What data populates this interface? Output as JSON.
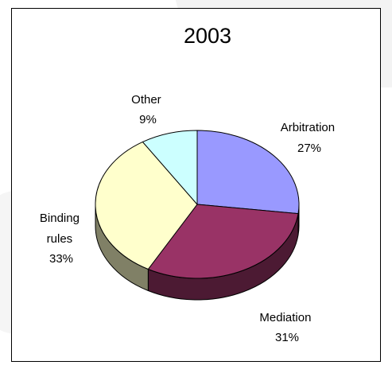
{
  "chart_data": {
    "type": "pie",
    "title": "2003",
    "slices": [
      {
        "label": "Arbitration",
        "percent_label": "27%",
        "value": 27,
        "color": "#9999ff",
        "side_color": "#4c4c80"
      },
      {
        "label": "Mediation",
        "percent_label": "31%",
        "value": 31,
        "color": "#993366",
        "side_color": "#4c1a33"
      },
      {
        "label": "Binding rules",
        "label_lines": [
          "Binding",
          "rules"
        ],
        "percent_label": "33%",
        "value": 33,
        "color": "#ffffcc",
        "side_color": "#808066"
      },
      {
        "label": "Other",
        "percent_label": "9%",
        "value": 9,
        "color": "#ccffff",
        "side_color": "#668080"
      }
    ],
    "style": "3d-pie",
    "legend": "none"
  }
}
